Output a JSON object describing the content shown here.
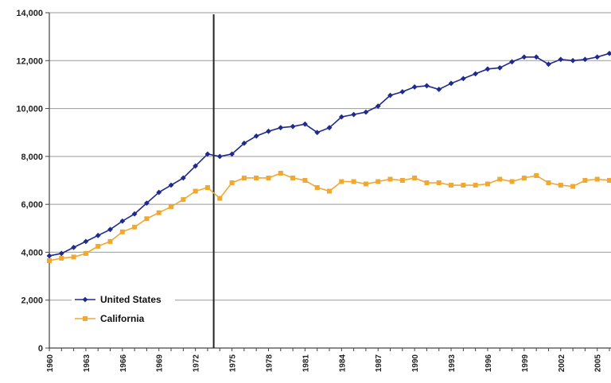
{
  "chart_data": {
    "type": "line",
    "title": "",
    "xlabel": "",
    "ylabel": "",
    "xlim": [
      1960,
      2006
    ],
    "ylim": [
      0,
      14000
    ],
    "y_ticks": [
      0,
      2000,
      4000,
      6000,
      8000,
      10000,
      12000,
      14000
    ],
    "y_tick_labels": [
      "0",
      "2,000",
      "4,000",
      "6,000",
      "8,000",
      "10,000",
      "12,000",
      "14,000"
    ],
    "x_tick_labels": [
      "1960",
      "1963",
      "1966",
      "1969",
      "1972",
      "1975",
      "1978",
      "1981",
      "1984",
      "1987",
      "1990",
      "1993",
      "1996",
      "1999",
      "2002",
      "2005"
    ],
    "grid": "horizontal",
    "legend_position": "bottom-left",
    "reference_line_year": 1973.5,
    "x": [
      1960,
      1961,
      1962,
      1963,
      1964,
      1965,
      1966,
      1967,
      1968,
      1969,
      1970,
      1971,
      1972,
      1973,
      1974,
      1975,
      1976,
      1977,
      1978,
      1979,
      1980,
      1981,
      1982,
      1983,
      1984,
      1985,
      1986,
      1987,
      1988,
      1989,
      1990,
      1991,
      1992,
      1993,
      1994,
      1995,
      1996,
      1997,
      1998,
      1999,
      2000,
      2001,
      2002,
      2003,
      2004,
      2005,
      2006
    ],
    "series": [
      {
        "name": "United States",
        "color": "#1f2a8c",
        "marker": "diamond",
        "values": [
          3850,
          3950,
          4200,
          4450,
          4700,
          4950,
          5300,
          5600,
          6050,
          6500,
          6800,
          7100,
          7600,
          8100,
          8000,
          8100,
          8550,
          8850,
          9050,
          9200,
          9250,
          9350,
          9000,
          9200,
          9650,
          9750,
          9850,
          10100,
          10550,
          10700,
          10900,
          10950,
          10800,
          11050,
          11250,
          11450,
          11650,
          11700,
          11950,
          12150,
          12150,
          11850,
          12050,
          12000,
          12050,
          12150,
          12300
        ]
      },
      {
        "name": "California",
        "color": "#f0a830",
        "marker": "square",
        "values": [
          3650,
          3750,
          3800,
          3950,
          4250,
          4450,
          4850,
          5050,
          5400,
          5650,
          5900,
          6200,
          6550,
          6700,
          6250,
          6900,
          7100,
          7100,
          7100,
          7300,
          7100,
          7000,
          6700,
          6550,
          6950,
          6950,
          6850,
          6950,
          7050,
          7000,
          7100,
          6900,
          6900,
          6800,
          6800,
          6800,
          6850,
          7050,
          6950,
          7100,
          7200,
          6900,
          6800,
          6750,
          7000,
          7050,
          7000
        ]
      }
    ]
  }
}
